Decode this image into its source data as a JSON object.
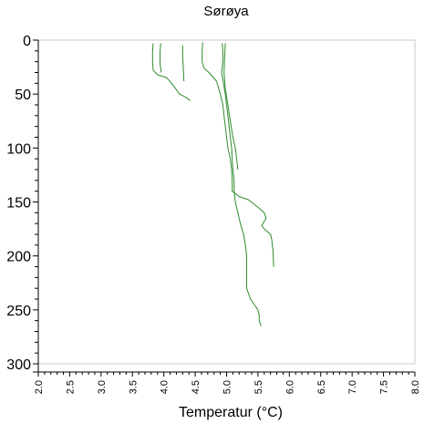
{
  "chart_data": {
    "type": "line",
    "title": "Sørøya",
    "xlabel": "Temperatur (°C)",
    "ylabel": "",
    "xlim": [
      2.0,
      8.0
    ],
    "ylim": [
      0,
      300
    ],
    "y_inverted": true,
    "x_ticks": [
      "2.0",
      "2.5",
      "3.0",
      "3.5",
      "4.0",
      "4.5",
      "5.0",
      "5.5",
      "6.0",
      "6.5",
      "7.0",
      "7.5",
      "8.0"
    ],
    "y_ticks": [
      "0",
      "50",
      "100",
      "150",
      "200",
      "250",
      "300"
    ],
    "grid": false,
    "line_color": "#2e8b2e",
    "series": [
      {
        "points": [
          [
            3.83,
            3
          ],
          [
            3.82,
            10
          ],
          [
            3.82,
            20
          ],
          [
            3.83,
            28
          ],
          [
            3.9,
            32
          ],
          [
            4.05,
            35
          ],
          [
            4.15,
            42
          ],
          [
            4.25,
            50
          ],
          [
            4.35,
            53
          ],
          [
            4.42,
            56
          ]
        ]
      },
      {
        "points": [
          [
            3.95,
            3
          ],
          [
            3.94,
            12
          ],
          [
            3.94,
            22
          ],
          [
            3.96,
            30
          ]
        ]
      },
      {
        "points": [
          [
            4.3,
            5
          ],
          [
            4.3,
            15
          ],
          [
            4.31,
            25
          ],
          [
            4.32,
            38
          ]
        ]
      },
      {
        "points": [
          [
            4.62,
            2
          ],
          [
            4.61,
            10
          ],
          [
            4.61,
            20
          ],
          [
            4.64,
            26
          ],
          [
            4.72,
            30
          ],
          [
            4.84,
            38
          ],
          [
            4.9,
            50
          ],
          [
            4.94,
            60
          ],
          [
            4.96,
            70
          ],
          [
            4.98,
            80
          ],
          [
            5.0,
            90
          ],
          [
            5.02,
            100
          ],
          [
            5.06,
            110
          ],
          [
            5.08,
            120
          ],
          [
            5.09,
            130
          ],
          [
            5.09,
            140
          ],
          [
            5.2,
            145
          ],
          [
            5.35,
            148
          ],
          [
            5.5,
            155
          ],
          [
            5.6,
            160
          ],
          [
            5.63,
            165
          ],
          [
            5.56,
            172
          ],
          [
            5.6,
            175
          ],
          [
            5.7,
            180
          ],
          [
            5.72,
            185
          ],
          [
            5.74,
            195
          ],
          [
            5.75,
            210
          ]
        ]
      },
      {
        "points": [
          [
            4.93,
            3
          ],
          [
            4.94,
            10
          ],
          [
            4.94,
            20
          ],
          [
            4.92,
            30
          ],
          [
            4.95,
            40
          ],
          [
            4.98,
            50
          ],
          [
            5.0,
            60
          ],
          [
            5.02,
            70
          ],
          [
            5.04,
            80
          ],
          [
            5.06,
            90
          ],
          [
            5.08,
            100
          ],
          [
            5.09,
            110
          ],
          [
            5.1,
            120
          ],
          [
            5.12,
            130
          ],
          [
            5.12,
            140
          ],
          [
            5.14,
            150
          ],
          [
            5.18,
            160
          ],
          [
            5.22,
            170
          ],
          [
            5.27,
            180
          ],
          [
            5.3,
            190
          ],
          [
            5.32,
            200
          ],
          [
            5.32,
            215
          ],
          [
            5.32,
            230
          ],
          [
            5.38,
            240
          ],
          [
            5.44,
            245
          ],
          [
            5.5,
            250
          ],
          [
            5.52,
            255
          ],
          [
            5.52,
            260
          ],
          [
            5.55,
            265
          ]
        ]
      },
      {
        "points": [
          [
            4.98,
            3
          ],
          [
            4.97,
            15
          ],
          [
            4.96,
            30
          ],
          [
            4.98,
            45
          ],
          [
            5.02,
            60
          ],
          [
            5.06,
            75
          ],
          [
            5.1,
            90
          ],
          [
            5.14,
            100
          ],
          [
            5.16,
            110
          ],
          [
            5.18,
            120
          ]
        ]
      }
    ]
  }
}
